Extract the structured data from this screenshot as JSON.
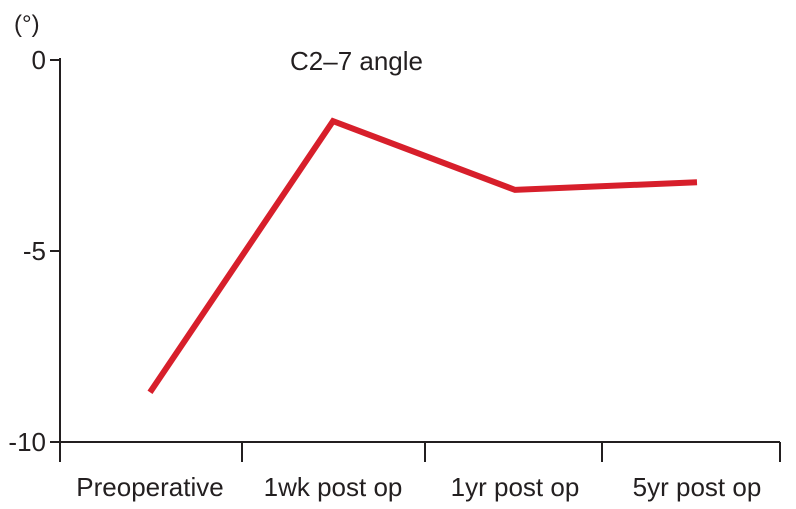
{
  "chart_data": {
    "type": "line",
    "title": "C2–7 angle",
    "ylabel": "(°)",
    "xlabel": "",
    "categories": [
      "Preoperative",
      "1wk post op",
      "1yr post op",
      "5yr post op"
    ],
    "series": [
      {
        "values": [
          -8.7,
          -1.6,
          -3.4,
          -3.2
        ],
        "color": "#d71f2b"
      }
    ],
    "ylim": [
      -10,
      0
    ],
    "yticks": [
      0,
      -5,
      -10
    ],
    "ytick_labels": [
      "0",
      "-5",
      "-10"
    ],
    "grid": false,
    "legend": "none"
  }
}
